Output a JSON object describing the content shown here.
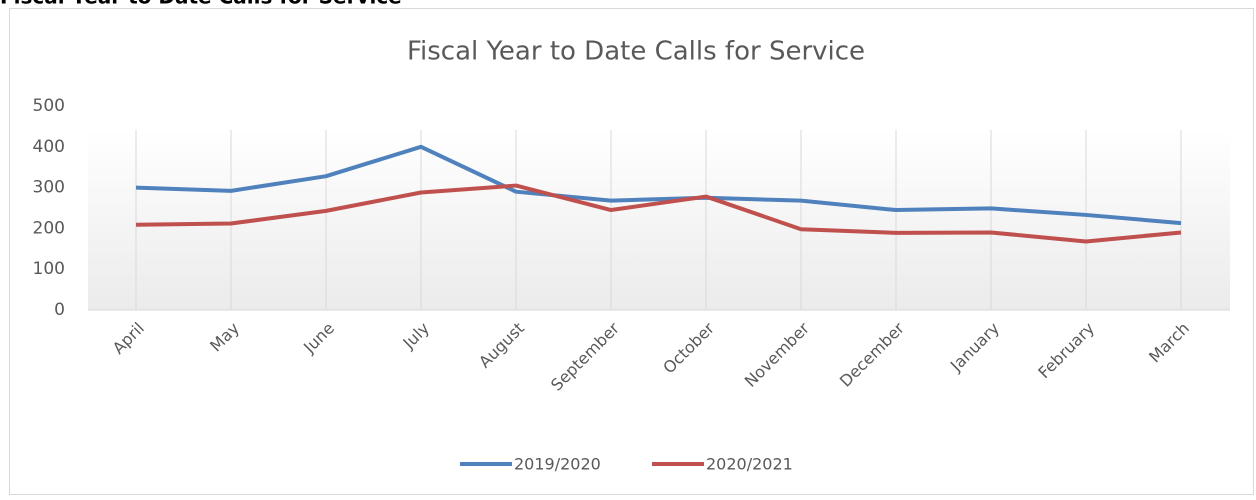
{
  "page_title": "Fiscal Year to Date Calls for Service",
  "chart_data": {
    "type": "line",
    "title": "Fiscal Year to Date Calls for Service",
    "categories": [
      "April",
      "May",
      "June",
      "July",
      "August",
      "September",
      "October",
      "November",
      "December",
      "January",
      "February",
      "March"
    ],
    "series": [
      {
        "name": "2019/2020",
        "color": "#4f81bd",
        "values": [
          300,
          292,
          328,
          400,
          290,
          268,
          275,
          268,
          245,
          249,
          233,
          213
        ]
      },
      {
        "name": "2020/2021",
        "color": "#c0504d",
        "values": [
          209,
          212,
          243,
          288,
          305,
          245,
          278,
          198,
          189,
          190,
          168,
          190
        ]
      }
    ],
    "ylim": [
      0,
      500
    ],
    "yticks": [
      0,
      100,
      200,
      300,
      400,
      500
    ],
    "legend": "bottom"
  }
}
